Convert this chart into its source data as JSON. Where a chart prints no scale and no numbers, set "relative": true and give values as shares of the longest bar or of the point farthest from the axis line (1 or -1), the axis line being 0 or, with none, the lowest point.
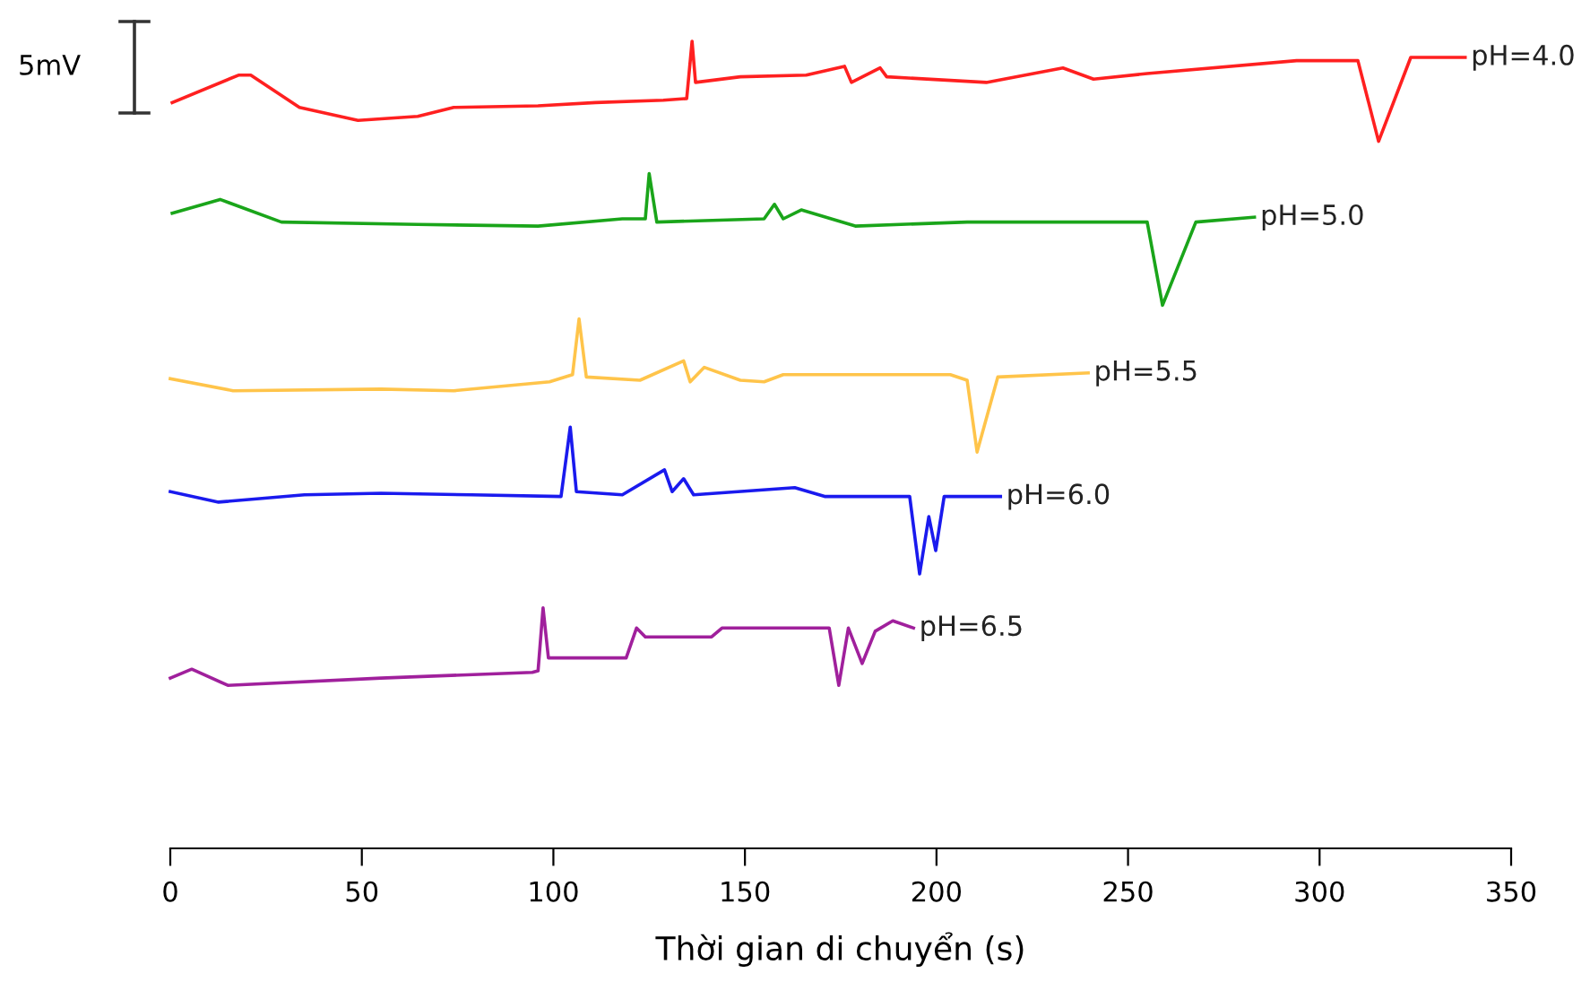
{
  "chart_data": {
    "type": "line",
    "relative": true,
    "xlabel": "Thời gian di chuyển (s)",
    "xlim": [
      0,
      350
    ],
    "xticks": [
      0,
      50,
      100,
      150,
      200,
      250,
      300,
      350
    ],
    "annotations": [
      "5mV"
    ],
    "series": [
      {
        "name": "pH=4.0",
        "color": "#ff2020",
        "x": [
          0.5,
          17.8,
          21,
          33.7,
          49,
          64.6,
          74,
          96,
          111,
          128.7,
          134.8,
          136.2,
          137.1,
          148.8,
          166,
          176,
          177.8,
          185.3,
          187,
          213,
          233,
          241,
          255,
          294,
          310,
          315.4,
          323.8,
          338
        ],
        "values": [
          0.924,
          0.958,
          0.958,
          0.918,
          0.902,
          0.907,
          0.918,
          0.92,
          0.924,
          0.927,
          0.929,
          1.0,
          0.949,
          0.956,
          0.958,
          0.969,
          0.949,
          0.967,
          0.956,
          0.949,
          0.967,
          0.953,
          0.96,
          0.976,
          0.976,
          0.876,
          0.98,
          0.98
        ]
      },
      {
        "name": "pH=5.0",
        "color": "#1aa51a",
        "x": [
          0.5,
          13,
          29,
          64.6,
          96,
          118,
          124,
          125,
          127,
          155,
          157.7,
          160,
          164.7,
          178.8,
          208,
          255,
          259,
          267.7,
          283
        ],
        "values": [
          0.787,
          0.804,
          0.776,
          0.773,
          0.771,
          0.78,
          0.78,
          0.836,
          0.776,
          0.78,
          0.798,
          0.78,
          0.791,
          0.771,
          0.776,
          0.776,
          0.673,
          0.776,
          0.782
        ]
      },
      {
        "name": "pH=5.5",
        "color": "#ffc44a",
        "x": [
          0,
          16.4,
          55,
          74,
          99,
          105,
          106.7,
          108.6,
          122.6,
          134,
          135.7,
          139.4,
          148.8,
          155,
          160,
          203.6,
          208,
          210.6,
          216,
          239.6
        ],
        "values": [
          0.582,
          0.567,
          0.569,
          0.567,
          0.578,
          0.587,
          0.656,
          0.584,
          0.58,
          0.604,
          0.578,
          0.596,
          0.58,
          0.578,
          0.587,
          0.587,
          0.58,
          0.491,
          0.584,
          0.589
        ]
      },
      {
        "name": "pH=6.0",
        "color": "#1a1aee",
        "x": [
          0,
          12.6,
          35,
          55,
          78.6,
          102,
          104.4,
          106,
          118,
          129,
          131,
          134,
          136.6,
          163,
          170.8,
          193,
          195.6,
          198,
          199.8,
          202,
          216.7
        ],
        "values": [
          0.442,
          0.429,
          0.438,
          0.44,
          0.438,
          0.436,
          0.522,
          0.442,
          0.438,
          0.469,
          0.442,
          0.458,
          0.438,
          0.447,
          0.436,
          0.436,
          0.34,
          0.411,
          0.369,
          0.436,
          0.436
        ]
      },
      {
        "name": "pH=6.5",
        "color": "#a0209c",
        "x": [
          0,
          5.6,
          15,
          55,
          94.5,
          96,
          97.3,
          98.7,
          119,
          121.7,
          124,
          141.3,
          144,
          172,
          174.5,
          177,
          180.6,
          184,
          188.6,
          194
        ],
        "values": [
          0.211,
          0.222,
          0.202,
          0.211,
          0.218,
          0.22,
          0.298,
          0.236,
          0.236,
          0.273,
          0.262,
          0.262,
          0.273,
          0.273,
          0.202,
          0.273,
          0.229,
          0.269,
          0.282,
          0.273
        ]
      }
    ]
  }
}
